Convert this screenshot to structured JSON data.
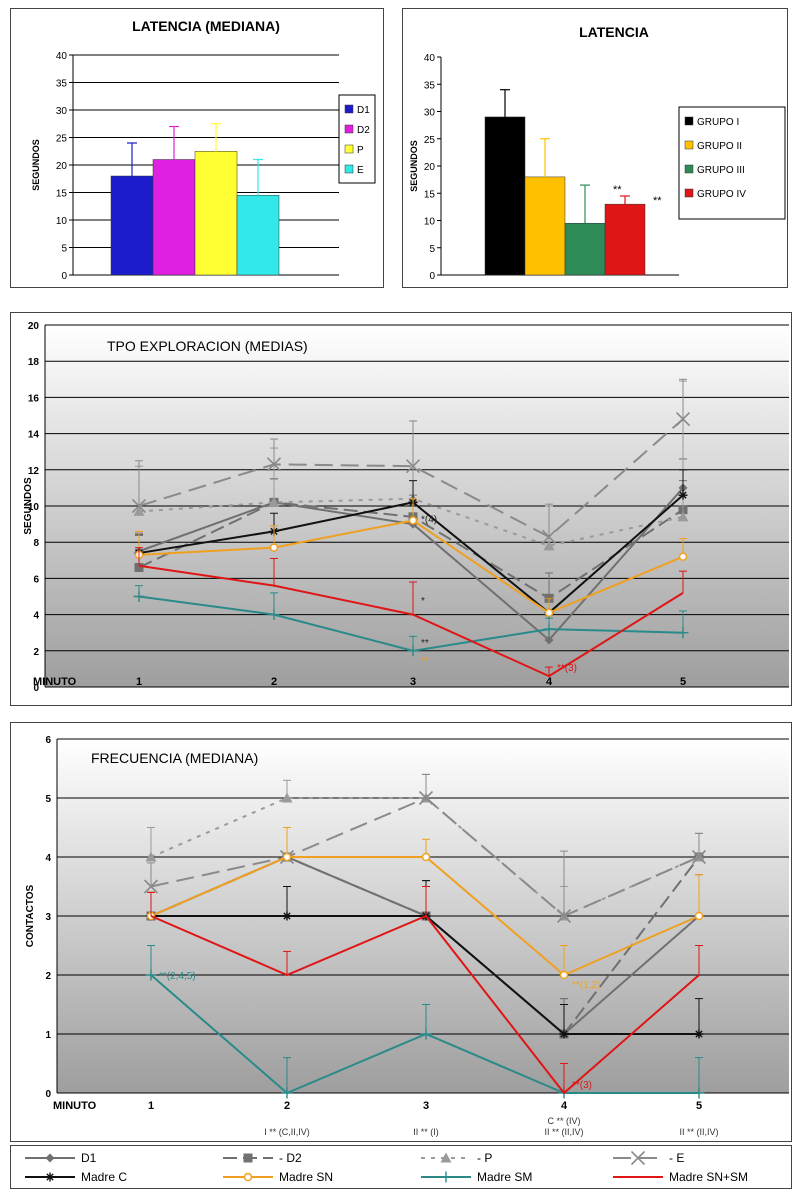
{
  "chart_data": [
    {
      "type": "bar",
      "title": "LATENCIA (MEDIANA)",
      "ylabel": "SEGUNDOS",
      "ylim": [
        0,
        40
      ],
      "yticks": [
        "0",
        "5",
        "10",
        "15",
        "20",
        "25",
        "30",
        "35",
        "40"
      ],
      "grid": true,
      "legend_position": "right",
      "series": [
        {
          "name": "D1",
          "value": 18,
          "err": 6,
          "color": "#1c1ccc"
        },
        {
          "name": "D2",
          "value": 21,
          "err": 6,
          "color": "#e020e0"
        },
        {
          "name": "P",
          "value": 22.5,
          "err": 5,
          "color": "#ffff33"
        },
        {
          "name": "E",
          "value": 14.5,
          "err": 6.5,
          "color": "#33e8e8"
        }
      ]
    },
    {
      "type": "bar",
      "title": "LATENCIA",
      "ylabel": "SEGUNDOS",
      "ylim": [
        0,
        40
      ],
      "yticks": [
        "0",
        "5",
        "10",
        "15",
        "20",
        "25",
        "30",
        "35",
        "40"
      ],
      "grid": false,
      "legend_position": "right",
      "series": [
        {
          "name": "GRUPO I",
          "value": 29,
          "err": 5,
          "color": "#000000",
          "annotation": ""
        },
        {
          "name": "GRUPO II",
          "value": 18,
          "err": 7,
          "color": "#ffc000",
          "annotation": ""
        },
        {
          "name": "GRUPO III",
          "value": 9.5,
          "err": 7,
          "color": "#2e8b57",
          "annotation": "**"
        },
        {
          "name": "GRUPO IV",
          "value": 13,
          "err": 1.5,
          "color": "#e01515",
          "annotation": "**"
        }
      ]
    },
    {
      "type": "line",
      "title": "TPO EXPLORACION (MEDIAS)",
      "ylabel": "SEGUNDOS",
      "xlabel": "MINUTO",
      "x": [
        "1",
        "2",
        "3",
        "4",
        "5"
      ],
      "ylim": [
        0,
        20
      ],
      "yticks": [
        "0",
        "2",
        "4",
        "6",
        "8",
        "10",
        "12",
        "14",
        "16",
        "18",
        "20"
      ],
      "grid": true,
      "series": [
        {
          "name": "D1",
          "values": [
            7.5,
            10.2,
            9,
            2.6,
            11
          ],
          "err": [
            1,
            1.3,
            1.2,
            1.4,
            1.6
          ],
          "color": "#707070",
          "dash": "",
          "marker": "diamond"
        },
        {
          "name": "D2",
          "values": [
            6.6,
            10.2,
            9.4,
            4.9,
            9.8
          ],
          "err": [
            1,
            1.3,
            1.2,
            1.4,
            1.6
          ],
          "color": "#707070",
          "dash": "14,6",
          "marker": "square"
        },
        {
          "name": "P",
          "values": [
            9.7,
            10.2,
            10.4,
            7.8,
            9.4
          ],
          "err": [
            2.5,
            3,
            4.3,
            2.2,
            7.5
          ],
          "color": "#9a9a9a",
          "dash": "4,6",
          "marker": "triangle"
        },
        {
          "name": "E",
          "values": [
            10,
            12.3,
            12.2,
            8.3,
            14.8
          ],
          "err": [
            2.5,
            1.4,
            2.5,
            1.8,
            2.2
          ],
          "color": "#8a8a8a",
          "dash": "18,8",
          "marker": "x"
        },
        {
          "name": "Madre C",
          "values": [
            7.4,
            8.6,
            10.2,
            4.1,
            10.6
          ],
          "err": [
            1,
            1,
            1.2,
            0.8,
            1.4
          ],
          "color": "#111111",
          "dash": "",
          "marker": "star"
        },
        {
          "name": "Madre SN",
          "values": [
            7.3,
            7.7,
            9.2,
            4.1,
            7.2
          ],
          "err": [
            1.3,
            1.2,
            1.2,
            0.8,
            1
          ],
          "color": "#f0a020",
          "dash": "",
          "marker": "circle"
        },
        {
          "name": "Madre SM",
          "values": [
            5,
            4,
            2,
            3.2,
            3
          ],
          "err": [
            0.6,
            1.2,
            0.8,
            0.6,
            1.2
          ],
          "color": "#2a8a8a",
          "dash": "",
          "marker": "plus"
        },
        {
          "name": "Madre SN+SM",
          "values": [
            6.7,
            5.6,
            4,
            0.6,
            5.2
          ],
          "err": [
            1,
            1.5,
            1.8,
            0.5,
            1.2
          ],
          "color": "#e01515",
          "dash": "",
          "marker": "none"
        }
      ],
      "annotations": [
        {
          "text": "*(4)",
          "x": 3,
          "y": 9.3,
          "color": "#222222"
        },
        {
          "text": "*",
          "x": 3,
          "y": 4.8,
          "color": "#222222"
        },
        {
          "text": "**",
          "x": 3,
          "y": 2.5,
          "color": "#222222"
        },
        {
          "text": "**",
          "x": 3,
          "y": 1.5,
          "color": "#f0a020"
        },
        {
          "text": "**(3)",
          "x": 4,
          "y": 1.1,
          "color": "#e01515"
        }
      ]
    },
    {
      "type": "line",
      "title": "FRECUENCIA  (MEDIANA)",
      "ylabel": "CONTACTOS",
      "xlabel": "MINUTO",
      "x": [
        "1",
        "2",
        "3",
        "4",
        "5"
      ],
      "xsub": [
        "",
        "I ** (C,II,IV)",
        "II ** (I)",
        "II ** (II,IV)",
        "II ** (II,IV)"
      ],
      "xsub_top": [
        "",
        "",
        "",
        "C ** (IV)",
        ""
      ],
      "ylim": [
        0,
        6
      ],
      "yticks": [
        "0",
        "1",
        "2",
        "3",
        "4",
        "5",
        "6"
      ],
      "grid": true,
      "series": [
        {
          "name": "D1",
          "values": [
            3,
            4,
            3,
            1,
            3
          ],
          "err": [
            0.4,
            0.5,
            0.6,
            0.6,
            0.7
          ],
          "color": "#707070",
          "dash": "",
          "marker": "diamond"
        },
        {
          "name": "D2",
          "values": [
            3,
            4,
            3,
            1,
            4
          ],
          "err": [
            0.4,
            0.5,
            0.6,
            0.6,
            0.4
          ],
          "color": "#707070",
          "dash": "14,6",
          "marker": "square"
        },
        {
          "name": "P",
          "values": [
            4,
            5,
            5,
            3,
            4
          ],
          "err": [
            0.5,
            0.3,
            0.4,
            0.5,
            0.4
          ],
          "color": "#9a9a9a",
          "dash": "4,6",
          "marker": "triangle"
        },
        {
          "name": "E",
          "values": [
            3.5,
            4,
            5,
            3,
            4
          ],
          "err": [
            0.4,
            0.5,
            0.4,
            1.1,
            0.4
          ],
          "color": "#8a8a8a",
          "dash": "18,8",
          "marker": "x"
        },
        {
          "name": "Madre C",
          "values": [
            3,
            3,
            3,
            1,
            1
          ],
          "err": [
            0.4,
            0.5,
            0.6,
            0.5,
            0.6
          ],
          "color": "#111111",
          "dash": "",
          "marker": "star"
        },
        {
          "name": "Madre SN",
          "values": [
            3,
            4,
            4,
            2,
            3
          ],
          "err": [
            0.4,
            0.5,
            0.3,
            0.5,
            0.7
          ],
          "color": "#f0a020",
          "dash": "",
          "marker": "circle"
        },
        {
          "name": "Madre SM",
          "values": [
            2,
            0,
            1,
            0,
            0
          ],
          "err": [
            0.5,
            0.6,
            0.5,
            0.5,
            0.6
          ],
          "color": "#2a8a8a",
          "dash": "",
          "marker": "plus"
        },
        {
          "name": "Madre SN+SM",
          "values": [
            3,
            2,
            3,
            0,
            2
          ],
          "err": [
            0.4,
            0.4,
            0.5,
            0.5,
            0.5
          ],
          "color": "#e01515",
          "dash": "",
          "marker": "none"
        }
      ],
      "annotations": [
        {
          "text": "**(2,4,5)",
          "x": 1,
          "y": 2,
          "color": "#2a8a8a"
        },
        {
          "text": "**(1,2)",
          "x": 4,
          "y": 1.85,
          "color": "#f0a020"
        },
        {
          "text": "**(3)",
          "x": 4,
          "y": 0.15,
          "color": "#e01515"
        }
      ]
    }
  ],
  "legend": {
    "items": [
      {
        "name": "D1",
        "color": "#707070",
        "dash": "",
        "marker": "diamond",
        "sep": "",
        "col": 0,
        "row": 0
      },
      {
        "name": "D2",
        "color": "#707070",
        "dash": "14,6",
        "marker": "square",
        "sep": "-",
        "col": 1,
        "row": 0
      },
      {
        "name": "P",
        "color": "#9a9a9a",
        "dash": "4,6",
        "marker": "triangle",
        "sep": "-",
        "col": 2,
        "row": 0
      },
      {
        "name": "E",
        "color": "#8a8a8a",
        "dash": "18,8",
        "marker": "x",
        "sep": "-",
        "col": 3,
        "row": 0
      },
      {
        "name": "Madre C",
        "color": "#111111",
        "dash": "",
        "marker": "star",
        "sep": "",
        "col": 0,
        "row": 1
      },
      {
        "name": "Madre SN",
        "color": "#f0a020",
        "dash": "",
        "marker": "circle",
        "sep": "",
        "col": 1,
        "row": 1
      },
      {
        "name": "Madre SM",
        "color": "#2a8a8a",
        "dash": "",
        "marker": "plus",
        "sep": "",
        "col": 2,
        "row": 1
      },
      {
        "name": "Madre SN+SM",
        "color": "#e01515",
        "dash": "",
        "marker": "none",
        "sep": "",
        "col": 3,
        "row": 1
      }
    ]
  }
}
